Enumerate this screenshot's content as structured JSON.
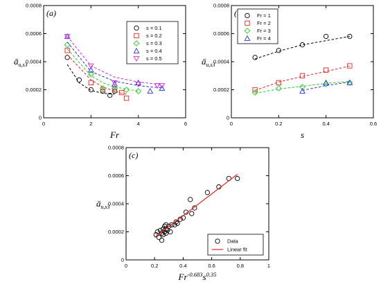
{
  "chart_data": [
    {
      "type": "scatter",
      "panel_label": "(a)",
      "xlabel": "Fr",
      "ylabel_main": "ā",
      "ylabel_sub": "u,s3",
      "xlim": [
        0,
        6
      ],
      "ylim": [
        0,
        0.0008
      ],
      "xticks": [
        "0",
        "2",
        "4",
        "6"
      ],
      "yticks": [
        "0",
        "0.0002",
        "0.0004",
        "0.0006",
        "0.0008"
      ],
      "legend_position": "top-right",
      "series": [
        {
          "name": "s = 0.1",
          "marker": "circle",
          "color": "#000000",
          "x": [
            1.0,
            1.5,
            2.0,
            2.5,
            2.8,
            3.0
          ],
          "y": [
            0.00043,
            0.00027,
            0.0002,
            0.00019,
            0.00016,
            0.00019
          ],
          "fit_y": [
            0.00038,
            0.00025,
            0.000195,
            0.000175,
            0.00017,
            0.000168
          ]
        },
        {
          "name": "s = 0.2",
          "marker": "square",
          "color": "#e8231f",
          "x": [
            1.0,
            2.0,
            2.5,
            3.0,
            3.3,
            3.5
          ],
          "y": [
            0.00048,
            0.00025,
            0.0002,
            0.0002,
            0.00018,
            0.00014
          ],
          "fit_y": [
            0.00045,
            0.00027,
            0.00022,
            0.00019,
            0.000175,
            0.00017
          ]
        },
        {
          "name": "s = 0.3",
          "marker": "diamond",
          "color": "#22cc22",
          "x": [
            1.0,
            2.0,
            2.5,
            3.0,
            3.5,
            4.0
          ],
          "y": [
            0.00052,
            0.00031,
            0.00021,
            0.00021,
            0.0002,
            0.00019
          ],
          "fit_y": [
            0.00049,
            0.0003,
            0.00025,
            0.00022,
            0.000205,
            0.00019
          ]
        },
        {
          "name": "s = 0.4",
          "marker": "triangle-up",
          "color": "#2233dd",
          "x": [
            1.0,
            2.0,
            3.0,
            4.0,
            4.5,
            5.0
          ],
          "y": [
            0.00058,
            0.00034,
            0.00024,
            0.00025,
            0.00019,
            0.00021
          ],
          "fit_y": [
            0.00054,
            0.00033,
            0.00026,
            0.00023,
            0.00022,
            0.000215
          ]
        },
        {
          "name": "s = 0.5",
          "marker": "triangle-down",
          "color": "#dd22dd",
          "x": [
            1.0,
            2.0,
            3.0,
            4.0,
            4.8,
            5.0
          ],
          "y": [
            0.00058,
            0.00037,
            0.00025,
            0.00024,
            0.00023,
            0.00023
          ],
          "fit_y": [
            0.00058,
            0.00037,
            0.00029,
            0.000255,
            0.00024,
            0.000235
          ]
        }
      ]
    },
    {
      "type": "scatter",
      "panel_label": "(b)",
      "xlabel": "s",
      "ylabel_main": "ā",
      "ylabel_sub": "u,s3",
      "xlim": [
        0,
        0.6
      ],
      "ylim": [
        0,
        0.0008
      ],
      "xticks": [
        "0",
        "0.2",
        "0.4",
        "0.6"
      ],
      "yticks": [
        "0",
        "0.0002",
        "0.0004",
        "0.0006",
        "0.0008"
      ],
      "legend_position": "top-left",
      "series": [
        {
          "name": "Fr = 1",
          "marker": "circle",
          "color": "#000000",
          "x": [
            0.1,
            0.2,
            0.3,
            0.4,
            0.5
          ],
          "y": [
            0.00043,
            0.00048,
            0.00052,
            0.00058,
            0.00058
          ],
          "fit_y": [
            0.00042,
            0.000475,
            0.00052,
            0.00055,
            0.00058
          ]
        },
        {
          "name": "Fr = 2",
          "marker": "square",
          "color": "#e8231f",
          "x": [
            0.1,
            0.2,
            0.3,
            0.4,
            0.5
          ],
          "y": [
            0.0002,
            0.00025,
            0.0003,
            0.00034,
            0.00037
          ],
          "fit_y": [
            0.000195,
            0.000255,
            0.000295,
            0.00033,
            0.00037
          ]
        },
        {
          "name": "Fr = 3",
          "marker": "diamond",
          "color": "#22cc22",
          "x": [
            0.1,
            0.2,
            0.3,
            0.4,
            0.5
          ],
          "y": [
            0.00018,
            0.00021,
            0.00022,
            0.00024,
            0.00025
          ],
          "fit_y": [
            0.000175,
            0.000205,
            0.000225,
            0.000245,
            0.00026
          ]
        },
        {
          "name": "Fr = 4",
          "marker": "triangle-up",
          "color": "#2233dd",
          "x": [
            0.3,
            0.4,
            0.5
          ],
          "y": [
            0.00019,
            0.00025,
            0.00025
          ],
          "fit_y": [
            0.000195,
            0.00023,
            0.000255
          ]
        }
      ]
    },
    {
      "type": "scatter",
      "panel_label": "(c)",
      "xlabel_base": "Fr",
      "xlabel_exp1": "-0.683",
      "xlabel_mid": "s",
      "xlabel_exp2": "0.35",
      "ylabel_main": "ā",
      "ylabel_sub": "u,s3",
      "xlim": [
        0,
        1
      ],
      "ylim": [
        0,
        0.0008
      ],
      "xticks": [
        "0",
        "0.2",
        "0.4",
        "0.6",
        "0.8",
        "1"
      ],
      "yticks": [
        "0",
        "0.0002",
        "0.0004",
        "0.0006",
        "0.0008"
      ],
      "legend_position": "bottom-right",
      "series": [
        {
          "name": "Data",
          "marker": "circle",
          "color": "#000000",
          "x": [
            0.21,
            0.22,
            0.23,
            0.24,
            0.25,
            0.25,
            0.26,
            0.26,
            0.27,
            0.27,
            0.28,
            0.28,
            0.28,
            0.29,
            0.3,
            0.31,
            0.32,
            0.34,
            0.35,
            0.36,
            0.38,
            0.4,
            0.42,
            0.45,
            0.46,
            0.48,
            0.57,
            0.65,
            0.72,
            0.78
          ],
          "y": [
            0.00018,
            0.0002,
            0.00016,
            0.00021,
            0.00014,
            0.00019,
            0.00022,
            0.00018,
            0.0002,
            0.00024,
            0.00019,
            0.00022,
            0.00025,
            0.00021,
            0.00024,
            0.0002,
            0.00025,
            0.00025,
            0.00027,
            0.00026,
            0.00029,
            0.0003,
            0.00034,
            0.00043,
            0.00033,
            0.00037,
            0.00048,
            0.00052,
            0.00058,
            0.00058
          ]
        },
        {
          "name": "Linear fit",
          "type": "line",
          "color": "#e8231f",
          "x": [
            0.2,
            0.78
          ],
          "y": [
            0.00016,
            0.00061
          ]
        }
      ]
    }
  ]
}
